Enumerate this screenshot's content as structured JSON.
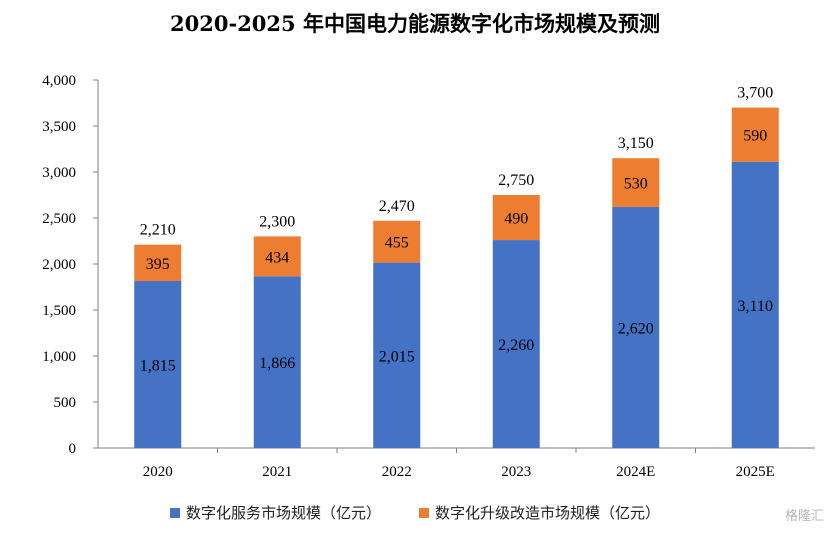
{
  "chart_data": {
    "type": "bar",
    "stacked": true,
    "title": "2020-2025 年中国电力能源数字化市场规模及预测",
    "categories": [
      "2020",
      "2021",
      "2022",
      "2023",
      "2024E",
      "2025E"
    ],
    "series": [
      {
        "name": "数字化服务市场规模（亿元）",
        "color": "#4472C4",
        "values": [
          1815,
          1866,
          2015,
          2260,
          2620,
          3110
        ],
        "labels": [
          "1,815",
          "1,866",
          "2,015",
          "2,260",
          "2,620",
          "3,110"
        ]
      },
      {
        "name": "数字化升级改造市场规模（亿元）",
        "color": "#ED7D31",
        "values": [
          395,
          434,
          455,
          490,
          530,
          590
        ],
        "labels": [
          "395",
          "434",
          "455",
          "490",
          "530",
          "590"
        ]
      }
    ],
    "totals": [
      "2,210",
      "2,300",
      "2,470",
      "2,750",
      "3,150",
      "3,700"
    ],
    "ylim": [
      0,
      4000
    ],
    "yticks": [
      0,
      500,
      1000,
      1500,
      2000,
      2500,
      3000,
      3500,
      4000
    ],
    "ytick_labels": [
      "0",
      "500",
      "1,000",
      "1,500",
      "2,000",
      "2,500",
      "3,000",
      "3,500",
      "4,000"
    ],
    "grid": false,
    "legend_position": "bottom"
  },
  "watermark": "格隆汇"
}
